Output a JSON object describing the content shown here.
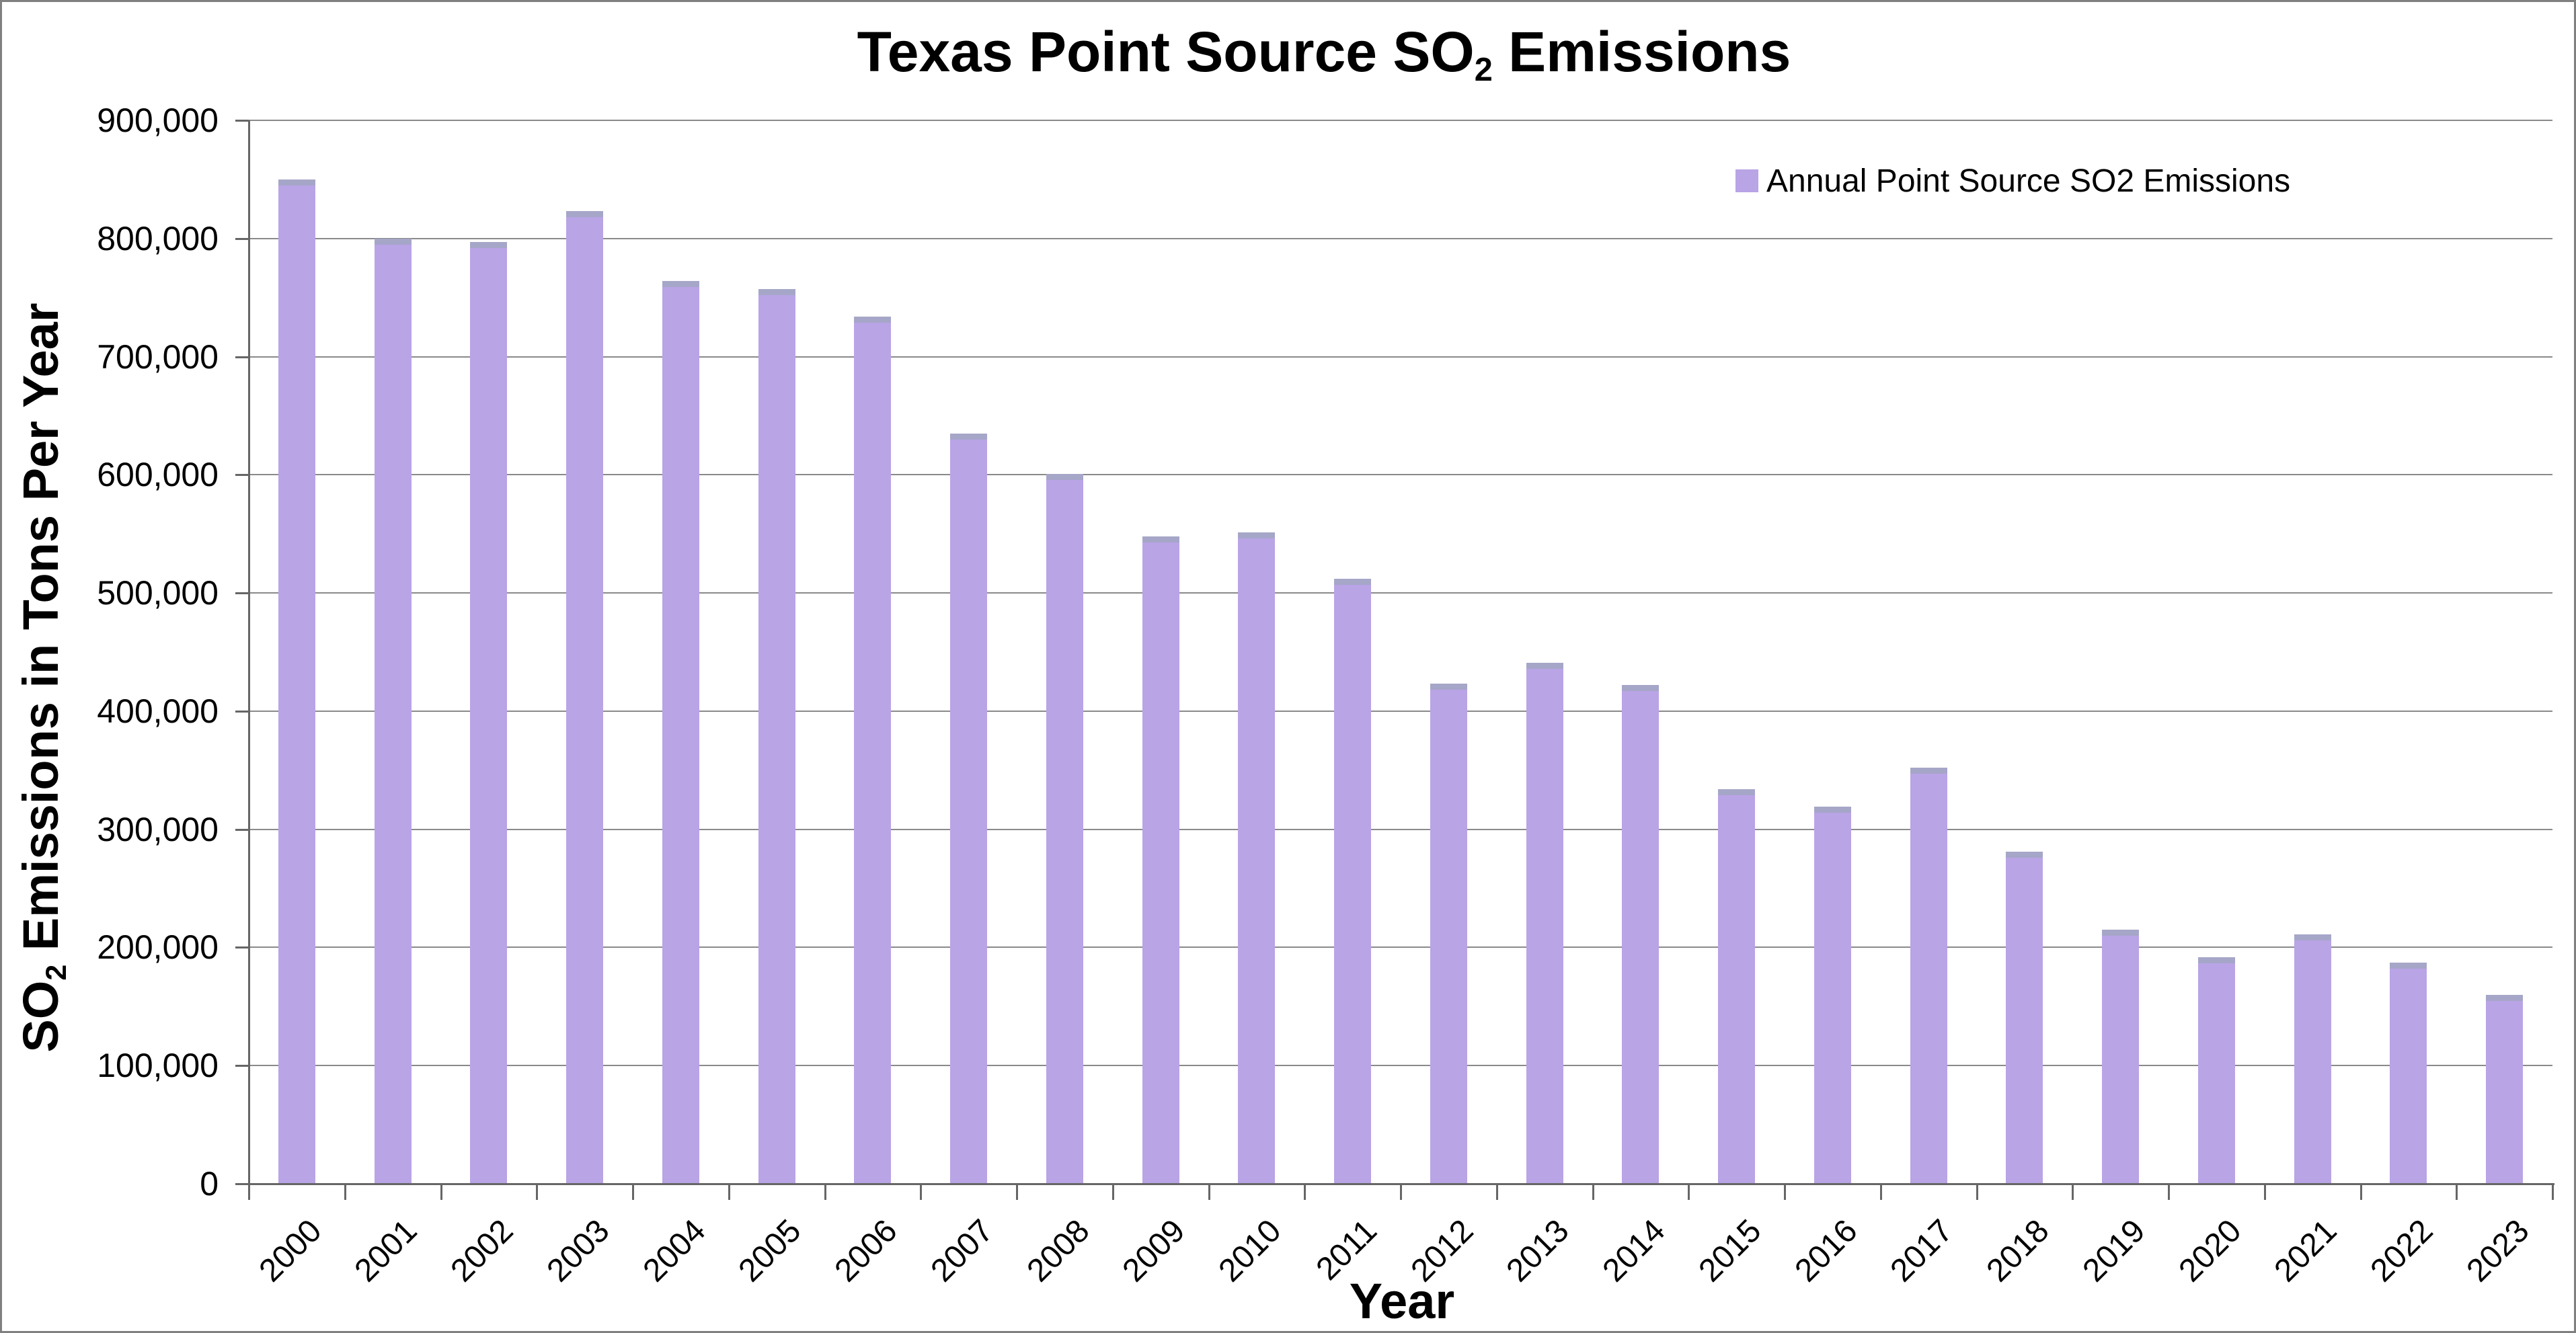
{
  "title": {
    "prefix": "Texas Point Source SO",
    "sub": "2",
    "suffix": " Emissions"
  },
  "y_axis": {
    "title_prefix": "SO",
    "title_sub": "2",
    "title_suffix": " Emissions in Tons Per Year",
    "tick_labels": [
      "0",
      "100,000",
      "200,000",
      "300,000",
      "400,000",
      "500,000",
      "600,000",
      "700,000",
      "800,000",
      "900,000"
    ]
  },
  "x_axis": {
    "title": "Year"
  },
  "legend": {
    "label": "Annual Point Source SO2 Emissions"
  },
  "chart_data": {
    "type": "bar",
    "title": "Texas Point Source SO2 Emissions",
    "xlabel": "Year",
    "ylabel": "SO2 Emissions in Tons Per Year",
    "categories": [
      "2000",
      "2001",
      "2002",
      "2003",
      "2004",
      "2005",
      "2006",
      "2007",
      "2008",
      "2009",
      "2010",
      "2011",
      "2012",
      "2013",
      "2014",
      "2015",
      "2016",
      "2017",
      "2018",
      "2019",
      "2020",
      "2021",
      "2022",
      "2023"
    ],
    "series": [
      {
        "name": "Annual Point Source SO2 Emissions",
        "values": [
          850000,
          800000,
          797000,
          823000,
          764000,
          757000,
          734000,
          635000,
          601000,
          548000,
          551000,
          512000,
          423000,
          441000,
          422000,
          334000,
          319000,
          352000,
          281000,
          215000,
          192000,
          211000,
          187000,
          160000
        ]
      }
    ],
    "ylim": [
      0,
      900000
    ],
    "ytick_step": 100000,
    "grid": true,
    "legend_position": "top-right",
    "colors": {
      "bar": "#b9a4e6",
      "bar_cap": "#a6a6c8",
      "grid": "#8a8a8a",
      "axis": "#666666",
      "text": "#000000",
      "frame": "#808080"
    }
  }
}
